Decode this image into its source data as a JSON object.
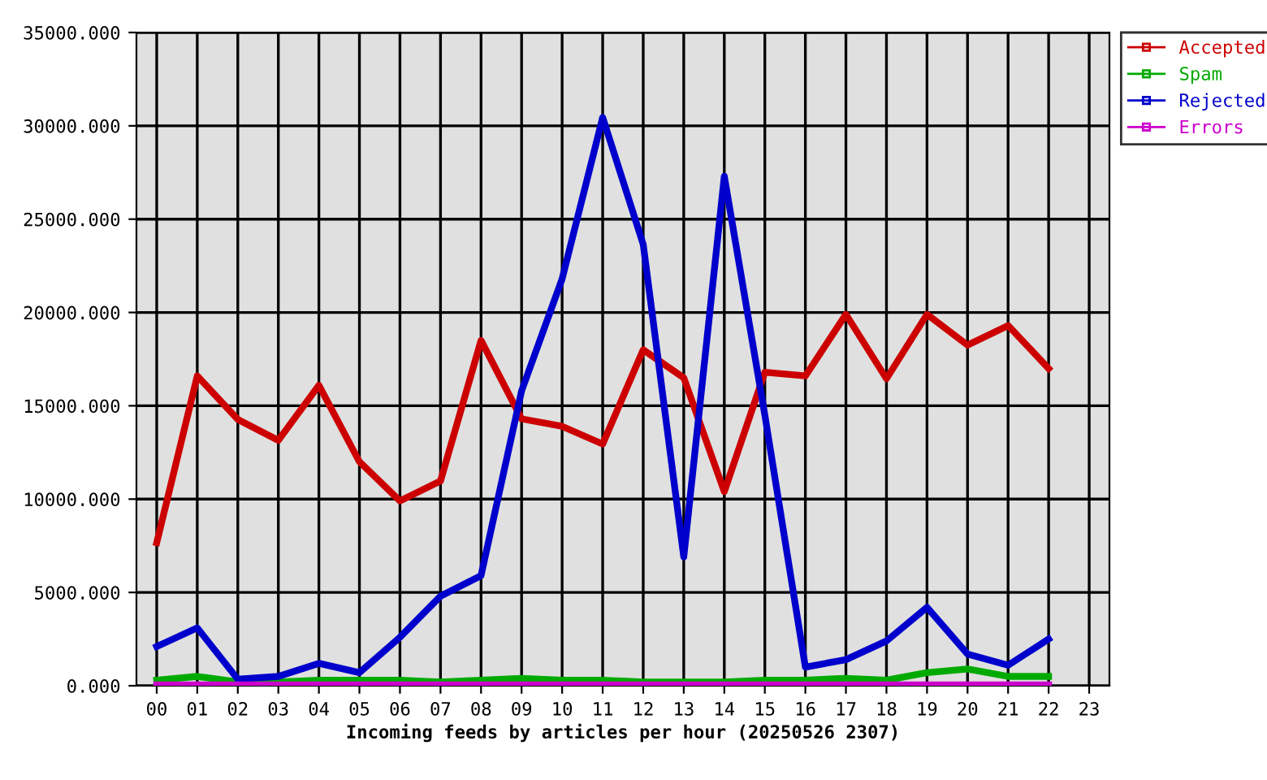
{
  "chart_data": {
    "type": "line",
    "xlabel": "Incoming feeds by articles per hour (20250526 2307)",
    "categories": [
      "00",
      "01",
      "02",
      "03",
      "04",
      "05",
      "06",
      "07",
      "08",
      "09",
      "10",
      "11",
      "12",
      "13",
      "14",
      "15",
      "16",
      "17",
      "18",
      "19",
      "20",
      "21",
      "22",
      "23"
    ],
    "series": [
      {
        "name": "Accepted",
        "color": "#cc0000",
        "values": [
          7660,
          16600,
          14270,
          13150,
          16100,
          12000,
          9900,
          10970,
          18500,
          14300,
          13900,
          12950,
          18000,
          16500,
          10400,
          16800,
          16600,
          19900,
          16450,
          19900,
          18250,
          19300,
          17000,
          null
        ]
      },
      {
        "name": "Spam",
        "color": "#00aa00",
        "values": [
          300,
          500,
          200,
          200,
          300,
          300,
          300,
          200,
          300,
          400,
          300,
          300,
          200,
          200,
          200,
          300,
          300,
          400,
          300,
          700,
          900,
          500,
          500,
          null
        ]
      },
      {
        "name": "Rejected",
        "color": "#0000cc",
        "values": [
          2100,
          3100,
          350,
          500,
          1200,
          700,
          2600,
          4800,
          5900,
          15800,
          21800,
          30450,
          23650,
          6900,
          27300,
          14500,
          1000,
          1400,
          2400,
          4200,
          1700,
          1100,
          2500,
          null
        ]
      },
      {
        "name": "Errors",
        "color": "#cc00cc",
        "values": [
          50,
          50,
          50,
          50,
          50,
          50,
          50,
          50,
          50,
          50,
          50,
          50,
          50,
          50,
          50,
          50,
          50,
          50,
          50,
          50,
          50,
          50,
          50,
          null
        ]
      }
    ],
    "ylim": [
      0,
      35000
    ],
    "yticks": [
      {
        "value": 0,
        "label": "0.000"
      },
      {
        "value": 5000,
        "label": "5000.000"
      },
      {
        "value": 10000,
        "label": "10000.000"
      },
      {
        "value": 15000,
        "label": "15000.000"
      },
      {
        "value": 20000,
        "label": "20000.000"
      },
      {
        "value": 25000,
        "label": "25000.000"
      },
      {
        "value": 30000,
        "label": "30000.000"
      },
      {
        "value": 35000,
        "label": "35000.000"
      }
    ],
    "grid": true,
    "legend": "top right",
    "line_style": "solid"
  }
}
